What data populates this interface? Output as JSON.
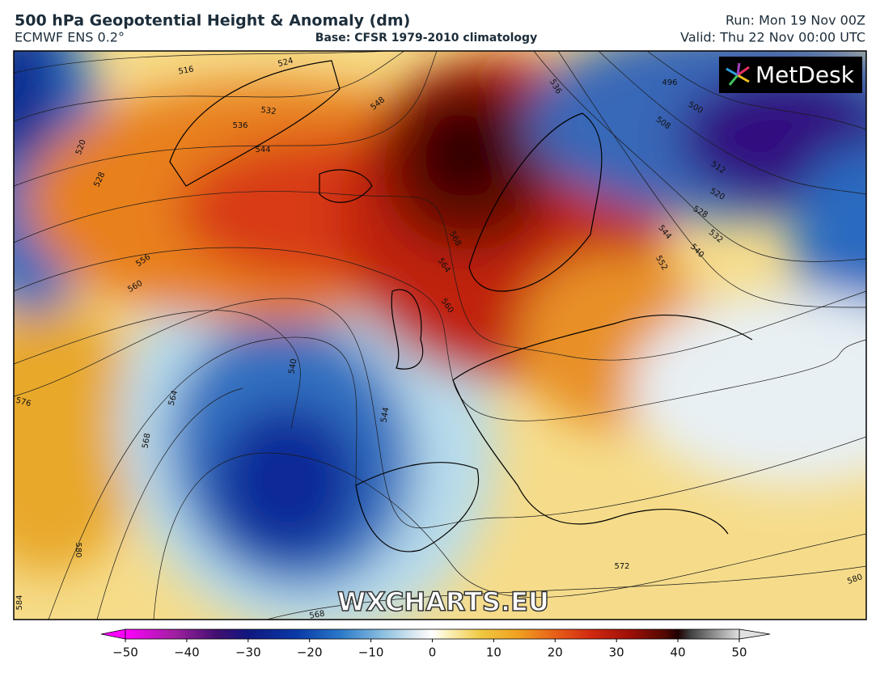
{
  "header": {
    "title": "500 hPa Geopotential Height & Anomaly (dm)",
    "model": "ECMWF ENS 0.2°",
    "base": "Base: CFSR 1979-2010 climatology",
    "run": "Run: Mon 19 Nov 00Z",
    "valid": "Valid: Thu 22 Nov 00:00 UTC"
  },
  "logo": "MetDesk",
  "watermark": "WXCHARTS.EU",
  "contour_labels": [
    516,
    524,
    532,
    536,
    544,
    548,
    536,
    496,
    500,
    508,
    512,
    520,
    528,
    532,
    540,
    544,
    552,
    568,
    564,
    560,
    556,
    560,
    520,
    528,
    540,
    544,
    564,
    568,
    576,
    580,
    584,
    572,
    580,
    568
  ],
  "colorbar": {
    "range": [
      -50,
      50
    ],
    "ticks": [
      {
        "value": -50,
        "label": "−50"
      },
      {
        "value": -40,
        "label": "−40"
      },
      {
        "value": -30,
        "label": "−30"
      },
      {
        "value": -20,
        "label": "−20"
      },
      {
        "value": -10,
        "label": "−10"
      },
      0,
      10,
      20,
      30,
      40,
      50
    ]
  }
}
